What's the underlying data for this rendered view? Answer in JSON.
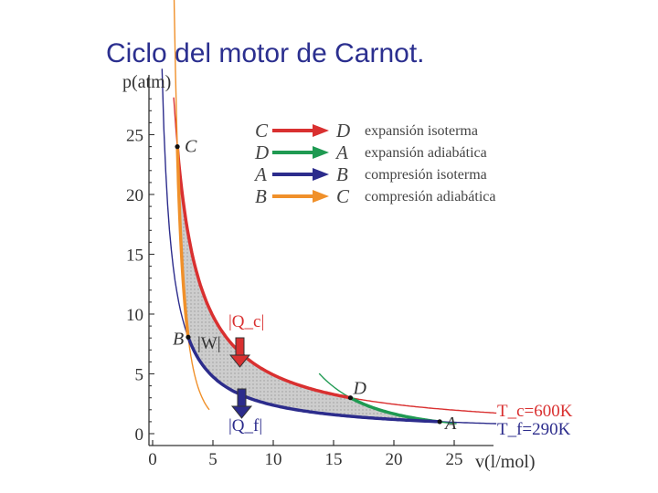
{
  "slide": {
    "title": "Ciclo del motor de Carnot."
  },
  "chart_data": {
    "type": "line",
    "title": "",
    "xlabel": "v(l/mol)",
    "ylabel": "p(atm)",
    "xlim": [
      -1,
      29
    ],
    "ylim": [
      0,
      30
    ],
    "xticks": [
      0,
      5,
      10,
      15,
      20,
      25
    ],
    "yticks": [
      0,
      5,
      10,
      15,
      20,
      25
    ],
    "points": [
      {
        "name": "C",
        "v": 2.05,
        "p": 24.0
      },
      {
        "name": "D",
        "v": 16.4,
        "p": 3.0
      },
      {
        "name": "A",
        "v": 23.8,
        "p": 1.0
      },
      {
        "name": "B",
        "v": 2.95,
        "p": 8.07
      }
    ],
    "series": [
      {
        "process": "C→D",
        "label": "expansión isoterma",
        "color": "#d93030"
      },
      {
        "process": "D→A",
        "label": "expansión adiabática",
        "color": "#1f9a52"
      },
      {
        "process": "A→B",
        "label": "compresión isoterma",
        "color": "#2c2c8c"
      },
      {
        "process": "B→C",
        "label": "compresión adiabática",
        "color": "#f0902a"
      }
    ],
    "isotherms": [
      {
        "label": "T_c=600K",
        "color": "#d93030"
      },
      {
        "label": "T_f=290K",
        "color": "#2c2c8c"
      }
    ],
    "annotations": {
      "heat_in": "|Q_c|",
      "work": "|W|",
      "heat_out": "|Q_f|"
    },
    "legend": {
      "placement": "top-right",
      "entries": [
        {
          "from": "C",
          "to": "D",
          "label": "expansión isoterma",
          "color": "#d93030"
        },
        {
          "from": "D",
          "to": "A",
          "label": "expansión adiabática",
          "color": "#1f9a52"
        },
        {
          "from": "A",
          "to": "B",
          "label": "compresión isoterma",
          "color": "#2c2c8c"
        },
        {
          "from": "B",
          "to": "C",
          "label": "compresión adiabática",
          "color": "#f0902a"
        }
      ]
    },
    "grid": false,
    "cycle_fill_color": "#c9c9c9"
  }
}
